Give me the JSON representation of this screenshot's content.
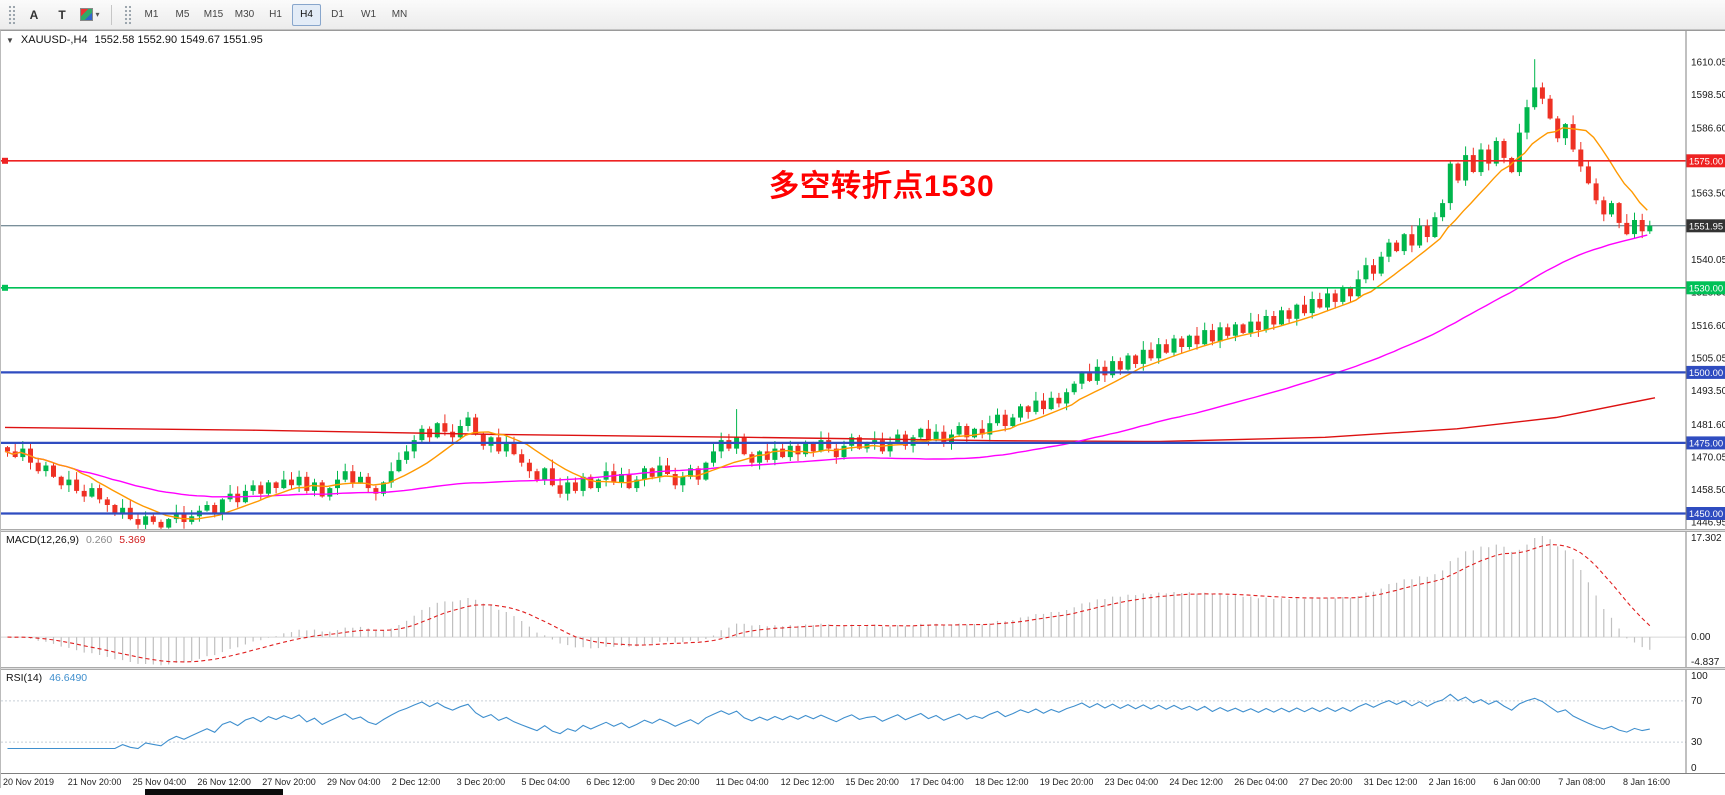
{
  "window": {
    "title_symbol": "XAUUSD-,H4",
    "title_ohlc": "1552.58 1552.90 1549.67 1551.95"
  },
  "icons": {
    "chart_collapse": "▼",
    "dropdown_chevron": "▾"
  },
  "toolbar": {
    "annotate_button": "A",
    "text_button": "T",
    "timeframes": [
      "M1",
      "M5",
      "M15",
      "M30",
      "H1",
      "H4",
      "D1",
      "W1",
      "MN"
    ],
    "active_timeframe": "H4"
  },
  "annotation": {
    "text": "多空转折点1530",
    "color": "#ff0000"
  },
  "axis": {
    "price_ticks": [
      "1610.05",
      "1598.50",
      "1586.60",
      "1575.00",
      "1563.50",
      "1551.95",
      "1540.05",
      "1528.50",
      "1516.60",
      "1505.05",
      "1493.50",
      "1481.60",
      "1470.05",
      "1458.50",
      "1446.95"
    ],
    "time_labels": [
      "20 Nov 2019",
      "21 Nov 20:00",
      "25 Nov 04:00",
      "26 Nov 12:00",
      "27 Nov 20:00",
      "29 Nov 04:00",
      "2 Dec 12:00",
      "3 Dec 20:00",
      "5 Dec 04:00",
      "6 Dec 12:00",
      "9 Dec 20:00",
      "11 Dec 04:00",
      "12 Dec 12:00",
      "15 Dec 20:00",
      "17 Dec 04:00",
      "18 Dec 12:00",
      "19 Dec 20:00",
      "23 Dec 04:00",
      "24 Dec 12:00",
      "26 Dec 04:00",
      "27 Dec 20:00",
      "31 Dec 12:00",
      "2 Jan 16:00",
      "6 Jan 00:00",
      "7 Jan 08:00",
      "8 Jan 16:00"
    ]
  },
  "levels": {
    "hlines": [
      {
        "price": 1575.0,
        "label": "1575.00",
        "color": "#ee2222",
        "width": 1.6
      },
      {
        "price": 1530.0,
        "label": "1530.00",
        "color": "#00c157",
        "width": 1.6
      },
      {
        "price": 1500.0,
        "label": "1500.00",
        "color": "#2f4cc0",
        "width": 2.2
      },
      {
        "price": 1475.0,
        "label": "1475.00",
        "color": "#2f4cc0",
        "width": 2.2
      },
      {
        "price": 1450.0,
        "label": "1450.00",
        "color": "#2f4cc0",
        "width": 2.2
      }
    ],
    "current_price": {
      "value": 1551.95,
      "label": "1551.95",
      "badge_color": "#333333",
      "line_color": "#4f6a79"
    }
  },
  "indicators": {
    "macd": {
      "name": "MACD(12,26,9)",
      "value_hist": "0.260",
      "value_signal": "5.369",
      "ticks": [
        "17.302",
        "0.00",
        "-4.837"
      ],
      "hist_color": "#c0c0c0",
      "signal_color": "#e02020"
    },
    "rsi": {
      "name": "RSI(14)",
      "value": "46.6490",
      "ticks": [
        "100",
        "70",
        "30",
        "0"
      ],
      "levels": [
        70,
        30
      ],
      "line_color": "#3f8fce"
    }
  },
  "chart_data": {
    "type": "candlestick",
    "symbol": "XAUUSD",
    "timeframe": "H4",
    "up_color": "#00b64c",
    "down_color": "#ee3124",
    "price_range": {
      "max": 1621,
      "min": 1444.5
    },
    "closes": [
      1472,
      1470,
      1473,
      1468,
      1465,
      1467,
      1463,
      1460,
      1462,
      1458,
      1456,
      1459,
      1455,
      1453,
      1450,
      1452,
      1448,
      1446,
      1449,
      1447,
      1445,
      1448,
      1450,
      1447,
      1449,
      1451,
      1453,
      1450,
      1455,
      1457,
      1454,
      1458,
      1460,
      1457,
      1461,
      1459,
      1462,
      1460,
      1463,
      1458,
      1461,
      1456,
      1459,
      1462,
      1465,
      1461,
      1463,
      1459,
      1457,
      1461,
      1465,
      1469,
      1472,
      1476,
      1480,
      1477,
      1482,
      1479,
      1477,
      1481,
      1484,
      1478,
      1474,
      1477,
      1472,
      1475,
      1471,
      1468,
      1465,
      1462,
      1466,
      1460,
      1457,
      1461,
      1458,
      1463,
      1459,
      1462,
      1465,
      1461,
      1464,
      1459,
      1462,
      1466,
      1463,
      1467,
      1464,
      1460,
      1463,
      1466,
      1462,
      1468,
      1472,
      1476,
      1473,
      1477,
      1471,
      1468,
      1472,
      1469,
      1473,
      1470,
      1474,
      1471,
      1475,
      1472,
      1476,
      1473,
      1470,
      1474,
      1477,
      1473,
      1475,
      1476,
      1472,
      1475,
      1478,
      1474,
      1477,
      1480,
      1476,
      1479,
      1475,
      1478,
      1481,
      1477,
      1480,
      1478,
      1482,
      1485,
      1481,
      1484,
      1488,
      1486,
      1490,
      1487,
      1491,
      1489,
      1493,
      1496,
      1500,
      1497,
      1502,
      1499,
      1504,
      1501,
      1506,
      1503,
      1508,
      1505,
      1510,
      1507,
      1512,
      1509,
      1513,
      1510,
      1515,
      1511,
      1516,
      1513,
      1517,
      1514,
      1518,
      1515,
      1520,
      1517,
      1522,
      1519,
      1524,
      1521,
      1526,
      1523,
      1528,
      1525,
      1530,
      1527,
      1533,
      1538,
      1535,
      1541,
      1546,
      1543,
      1549,
      1545,
      1552,
      1548,
      1555,
      1560,
      1574,
      1568,
      1577,
      1571,
      1579,
      1574,
      1582,
      1576,
      1571,
      1585,
      1594,
      1601,
      1597,
      1590,
      1583,
      1588,
      1579,
      1573,
      1567,
      1561,
      1556,
      1560,
      1553,
      1549,
      1554,
      1550,
      1552
    ],
    "wick_overrides": {
      "20": {
        "low": 1443.8
      },
      "60": {
        "high": 1486
      },
      "95": {
        "high": 1487
      },
      "199": {
        "high": 1611
      }
    },
    "ma_colors": {
      "fast": "#ff9900",
      "medium": "#ff00ff",
      "slow": "#dd1111"
    },
    "ma_red_waypoints": [
      [
        0,
        1480.5
      ],
      [
        0.15,
        1479.5
      ],
      [
        0.3,
        1478
      ],
      [
        0.45,
        1477
      ],
      [
        0.6,
        1475.8
      ],
      [
        0.7,
        1475.5
      ],
      [
        0.8,
        1477
      ],
      [
        0.88,
        1480
      ],
      [
        0.94,
        1484
      ],
      [
        1.0,
        1491
      ]
    ]
  }
}
